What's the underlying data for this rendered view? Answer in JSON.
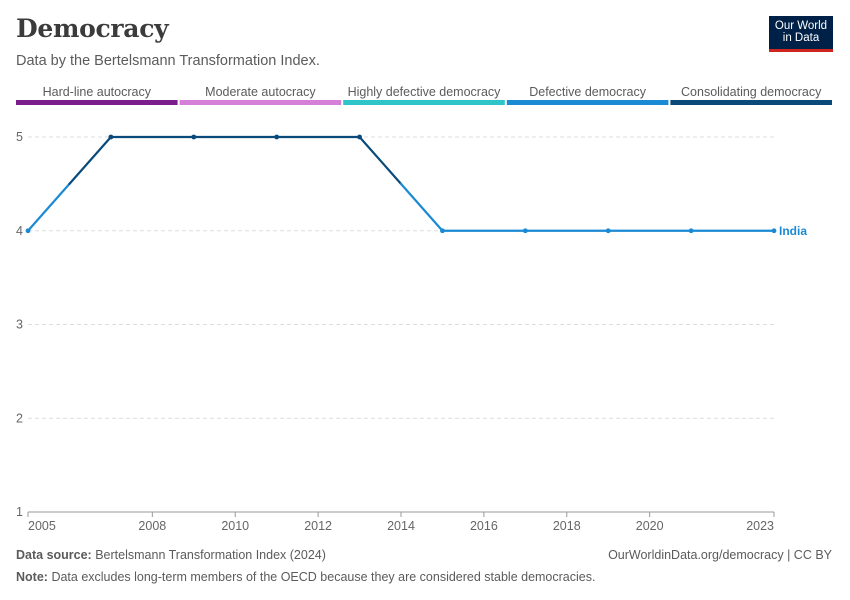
{
  "header": {
    "title": "Democracy",
    "subtitle": "Data by the Bertelsmann Transformation Index."
  },
  "logo": {
    "line1": "Our World",
    "line2": "in Data"
  },
  "footer": {
    "source_label": "Data source:",
    "source_text": "Bertelsmann Transformation Index (2024)",
    "link_text": "OurWorldinData.org/democracy | CC BY",
    "note_label": "Note:",
    "note_text": "Data excludes long-term members of the OECD because they are considered stable democracies."
  },
  "colors": {
    "hard_line_autocracy": "#7b1d8a",
    "moderate_autocracy": "#d67fd8",
    "highly_defective_democracy": "#2ec4c8",
    "defective_democracy": "#1b8ad4",
    "consolidating_democracy": "#0a4a7b",
    "india_label": "#1b8ad4"
  },
  "chart_data": {
    "type": "line",
    "legend": [
      {
        "label": "Hard-line autocracy",
        "color": "#7b1d8a"
      },
      {
        "label": "Moderate autocracy",
        "color": "#d67fd8"
      },
      {
        "label": "Highly defective democracy",
        "color": "#2ec4c8"
      },
      {
        "label": "Defective democracy",
        "color": "#1b8ad4"
      },
      {
        "label": "Consolidating democracy",
        "color": "#0a4a7b"
      }
    ],
    "xlim": [
      2005,
      2023
    ],
    "ylim": [
      1,
      5
    ],
    "x_ticks": [
      2005,
      2008,
      2010,
      2012,
      2014,
      2016,
      2018,
      2020,
      2023
    ],
    "y_ticks": [
      1,
      2,
      3,
      4,
      5
    ],
    "grid": true,
    "series": [
      {
        "name": "India",
        "x": [
          2005,
          2007,
          2009,
          2011,
          2013,
          2015,
          2017,
          2019,
          2021,
          2023
        ],
        "y": [
          4,
          5,
          5,
          5,
          5,
          4,
          4,
          4,
          4,
          4
        ]
      }
    ]
  }
}
